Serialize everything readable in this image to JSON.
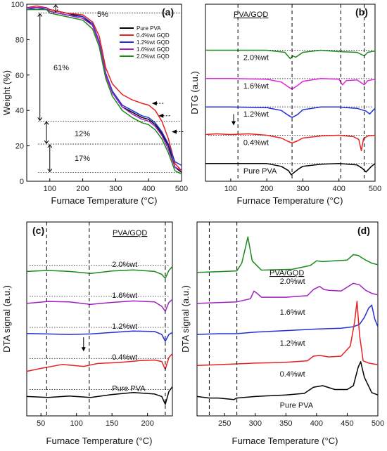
{
  "chart_data": [
    {
      "panel": "(a)",
      "type": "line",
      "xlabel": "Furnace Temperature (°C)",
      "ylabel": "Weight (%)",
      "xlim": [
        30,
        500
      ],
      "ylim": [
        0,
        100
      ],
      "xticks": [
        100,
        200,
        300,
        400,
        500
      ],
      "yticks": [
        0,
        20,
        40,
        60,
        80,
        100
      ],
      "legend_position": "top-right",
      "annotations": [
        "5%",
        "61%",
        "12%",
        "17%"
      ],
      "series": [
        {
          "name": "Pure PVA",
          "color": "#000000",
          "x": [
            30,
            60,
            90,
            100,
            150,
            200,
            230,
            250,
            270,
            290,
            320,
            350,
            380,
            400,
            420,
            440,
            460,
            480,
            500
          ],
          "y": [
            98,
            98,
            98,
            97,
            95,
            93,
            88,
            78,
            60,
            50,
            42,
            39,
            36,
            35,
            32,
            27,
            20,
            8,
            5
          ]
        },
        {
          "name": "0.4%wt GQD",
          "color": "#e8201f",
          "x": [
            30,
            60,
            90,
            100,
            150,
            200,
            230,
            250,
            270,
            290,
            320,
            350,
            380,
            400,
            420,
            440,
            460,
            480,
            500
          ],
          "y": [
            98,
            99,
            98,
            97,
            95,
            94,
            90,
            82,
            64,
            55,
            49,
            46,
            44,
            43,
            40,
            34,
            24,
            10,
            6
          ]
        },
        {
          "name": "1.2%wt GQD",
          "color": "#2030d8",
          "x": [
            30,
            60,
            90,
            100,
            150,
            200,
            230,
            250,
            270,
            290,
            320,
            350,
            380,
            400,
            420,
            440,
            460,
            480,
            500
          ],
          "y": [
            97,
            98,
            97,
            96,
            94,
            93,
            89,
            79,
            61,
            51,
            43,
            40,
            37,
            36,
            33,
            28,
            21,
            11,
            9
          ]
        },
        {
          "name": "1.6%wt GQD",
          "color": "#a020c0",
          "x": [
            30,
            60,
            90,
            100,
            150,
            200,
            230,
            250,
            270,
            290,
            320,
            350,
            380,
            400,
            420,
            440,
            460,
            480,
            500
          ],
          "y": [
            98,
            98,
            98,
            96,
            94,
            92,
            88,
            78,
            60,
            50,
            42,
            38,
            35,
            34,
            31,
            26,
            18,
            8,
            6
          ]
        },
        {
          "name": "2.0%wt GQD",
          "color": "#1a8a1a",
          "x": [
            30,
            60,
            90,
            100,
            150,
            200,
            230,
            250,
            270,
            290,
            320,
            350,
            380,
            400,
            420,
            440,
            460,
            480,
            500
          ],
          "y": [
            97,
            97,
            97,
            95,
            93,
            91,
            86,
            76,
            58,
            48,
            40,
            36,
            33,
            32,
            29,
            24,
            16,
            6,
            4
          ]
        }
      ]
    },
    {
      "panel": "(b)",
      "type": "line",
      "xlabel": "Furnace Temperature (°C)",
      "ylabel": "DTG (a.u.)",
      "xlim": [
        30,
        500
      ],
      "xticks": [
        100,
        200,
        300,
        400,
        500
      ],
      "group_label": "PVA/GQD",
      "series": [
        {
          "name": "2.0%wt",
          "color": "#1a8a1a",
          "baseline": 5,
          "x": [
            30,
            100,
            200,
            250,
            265,
            272,
            280,
            300,
            350,
            400,
            450,
            470,
            480,
            500
          ],
          "y": [
            0,
            0,
            0,
            -0.3,
            -1.2,
            -0.8,
            -1.0,
            -0.3,
            0,
            -0.2,
            -0.3,
            -0.8,
            -0.3,
            -0.1
          ]
        },
        {
          "name": "1.6%wt",
          "color": "#e020e0",
          "baseline": 4,
          "x": [
            30,
            100,
            200,
            240,
            260,
            270,
            285,
            300,
            350,
            400,
            410,
            420,
            450,
            470,
            480,
            500
          ],
          "y": [
            0,
            0,
            -0.1,
            -0.5,
            -1.2,
            -1.5,
            -1.0,
            -0.4,
            0,
            -0.1,
            -0.9,
            -0.3,
            -0.2,
            -0.9,
            -0.3,
            -0.1
          ]
        },
        {
          "name": "1.2%wt",
          "color": "#2030d8",
          "baseline": 3,
          "x": [
            30,
            100,
            200,
            240,
            260,
            270,
            285,
            300,
            350,
            400,
            420,
            450,
            475,
            485,
            500
          ],
          "y": [
            0,
            0,
            -0.1,
            -0.5,
            -1.2,
            -1.5,
            -1.1,
            -0.4,
            0,
            0,
            -0.1,
            -0.2,
            -0.6,
            -1.0,
            -0.2
          ]
        },
        {
          "name": "0.4%wt",
          "color": "#e8201f",
          "baseline": 2,
          "x": [
            30,
            60,
            100,
            150,
            200,
            240,
            260,
            270,
            285,
            300,
            350,
            400,
            440,
            455,
            462,
            468,
            480,
            500
          ],
          "y": [
            0.1,
            0.2,
            0.1,
            0.2,
            0,
            -0.4,
            -0.9,
            -1.1,
            -0.8,
            -0.4,
            -0.1,
            0,
            -0.2,
            -0.6,
            -2.2,
            -0.5,
            -0.1,
            0
          ]
        },
        {
          "name": "Pure PVA",
          "color": "#000000",
          "baseline": 1,
          "x": [
            30,
            100,
            200,
            240,
            260,
            268,
            275,
            290,
            300,
            350,
            400,
            450,
            465,
            475,
            490,
            500
          ],
          "y": [
            0,
            0,
            0,
            -0.4,
            -1.0,
            -1.6,
            -1.3,
            -0.7,
            -0.4,
            -0.1,
            0,
            -0.2,
            -0.7,
            -1.2,
            -0.4,
            0
          ]
        }
      ],
      "vlines": [
        120,
        270,
        405,
        470
      ]
    },
    {
      "panel": "(c)",
      "type": "line",
      "xlabel": "Furnace Temperature (°C)",
      "ylabel": "DTA signal (a.u.)",
      "xlim": [
        30,
        235
      ],
      "xticks": [
        50,
        100,
        150,
        200
      ],
      "group_label": "PVA/GQD",
      "series": [
        {
          "name": "2.0%wt",
          "color": "#1a8a1a",
          "baseline": 5,
          "x": [
            30,
            60,
            90,
            120,
            150,
            180,
            210,
            220,
            225,
            230,
            235
          ],
          "y": [
            0.1,
            0.2,
            0.1,
            -0.1,
            0.15,
            0.25,
            0.1,
            -0.2,
            -0.6,
            0.2,
            0.6
          ]
        },
        {
          "name": "1.6%wt",
          "color": "#a020c0",
          "baseline": 4,
          "x": [
            30,
            60,
            90,
            120,
            150,
            180,
            210,
            220,
            225,
            230,
            235
          ],
          "y": [
            0,
            0.2,
            0.15,
            -0.1,
            0.1,
            0.25,
            0.15,
            -0.3,
            -0.8,
            0.1,
            0.4
          ]
        },
        {
          "name": "1.2%wt",
          "color": "#2030d8",
          "baseline": 3,
          "x": [
            30,
            60,
            90,
            120,
            150,
            180,
            210,
            220,
            225,
            230,
            235
          ],
          "y": [
            0.1,
            0.05,
            0,
            0.05,
            0.2,
            0.35,
            0.3,
            0,
            -0.7,
            0,
            0.2
          ]
        },
        {
          "name": "0.4%wt",
          "color": "#e8201f",
          "baseline": 2,
          "x": [
            30,
            50,
            80,
            110,
            130,
            160,
            190,
            210,
            220,
            225,
            230,
            235
          ],
          "y": [
            -0.6,
            -0.3,
            0.1,
            -0.1,
            0.2,
            0.3,
            0.5,
            0.55,
            0.4,
            -0.4,
            0.8,
            1.2
          ]
        },
        {
          "name": "Pure PVA",
          "color": "#000000",
          "baseline": 1,
          "x": [
            30,
            60,
            90,
            120,
            150,
            180,
            210,
            220,
            225,
            230,
            235
          ],
          "y": [
            0,
            -0.1,
            0.05,
            -0.1,
            0.2,
            0.4,
            0.25,
            0,
            -0.8,
            0.5,
            1.0
          ]
        }
      ],
      "vlines": [
        58,
        118,
        225
      ]
    },
    {
      "panel": "(d)",
      "type": "line",
      "xlabel": "Furnace Temperature (°C)",
      "ylabel": "DTA signal (a.u.)",
      "xlim": [
        205,
        500
      ],
      "xticks": [
        250,
        300,
        350,
        400,
        450,
        500
      ],
      "group_label": "PVA/GQD",
      "series": [
        {
          "name": "2.0%wt",
          "color": "#1a8a1a",
          "baseline": 5,
          "x": [
            205,
            240,
            270,
            278,
            284,
            288,
            295,
            310,
            360,
            390,
            400,
            410,
            430,
            450,
            460,
            468,
            480,
            490,
            500
          ],
          "y": [
            0,
            0.1,
            0.2,
            1.2,
            3.2,
            4.6,
            1.5,
            0.3,
            0.4,
            0.9,
            1.5,
            1.4,
            1.5,
            1.6,
            2.3,
            2.2,
            1.6,
            1.2,
            1.0
          ]
        },
        {
          "name": "1.6%wt",
          "color": "#a020c0",
          "baseline": 4,
          "x": [
            205,
            240,
            270,
            292,
            298,
            303,
            310,
            350,
            385,
            395,
            405,
            412,
            420,
            440,
            460,
            470,
            480,
            490,
            500
          ],
          "y": [
            0,
            0.1,
            0.2,
            0.6,
            1.6,
            1.3,
            0.8,
            0.8,
            1.0,
            1.8,
            2.2,
            1.8,
            1.7,
            1.6,
            2.6,
            2.4,
            1.7,
            1.3,
            1.1
          ]
        },
        {
          "name": "1.2%wt",
          "color": "#2030d8",
          "baseline": 3,
          "x": [
            205,
            240,
            270,
            300,
            350,
            400,
            440,
            460,
            470,
            478,
            485,
            490,
            495,
            500
          ],
          "y": [
            0,
            0.1,
            0.1,
            0.3,
            0.5,
            0.7,
            0.8,
            1.0,
            1.3,
            2.2,
            3.4,
            3.8,
            2.0,
            1.0
          ]
        },
        {
          "name": "0.4%wt",
          "color": "#e8201f",
          "baseline": 2,
          "x": [
            205,
            240,
            270,
            300,
            350,
            385,
            395,
            405,
            420,
            440,
            455,
            462,
            466,
            470,
            476,
            485,
            500
          ],
          "y": [
            0,
            0.1,
            0.2,
            0.3,
            0.4,
            0.6,
            1.2,
            1.3,
            1.1,
            1.2,
            2.5,
            5.6,
            8.3,
            4.0,
            0.6,
            0.3,
            0.1
          ]
        },
        {
          "name": "Pure PVA",
          "color": "#000000",
          "baseline": 1,
          "x": [
            205,
            225,
            240,
            265,
            270,
            300,
            350,
            380,
            395,
            410,
            430,
            450,
            460,
            468,
            472,
            478,
            490,
            500
          ],
          "y": [
            0,
            -0.2,
            -0.2,
            -0.4,
            -0.2,
            0,
            0.2,
            0.4,
            1.2,
            1.4,
            0.9,
            0.9,
            1.4,
            3.8,
            4.5,
            2.5,
            0.5,
            0.2
          ]
        }
      ],
      "vlines": [
        225,
        270
      ]
    }
  ]
}
